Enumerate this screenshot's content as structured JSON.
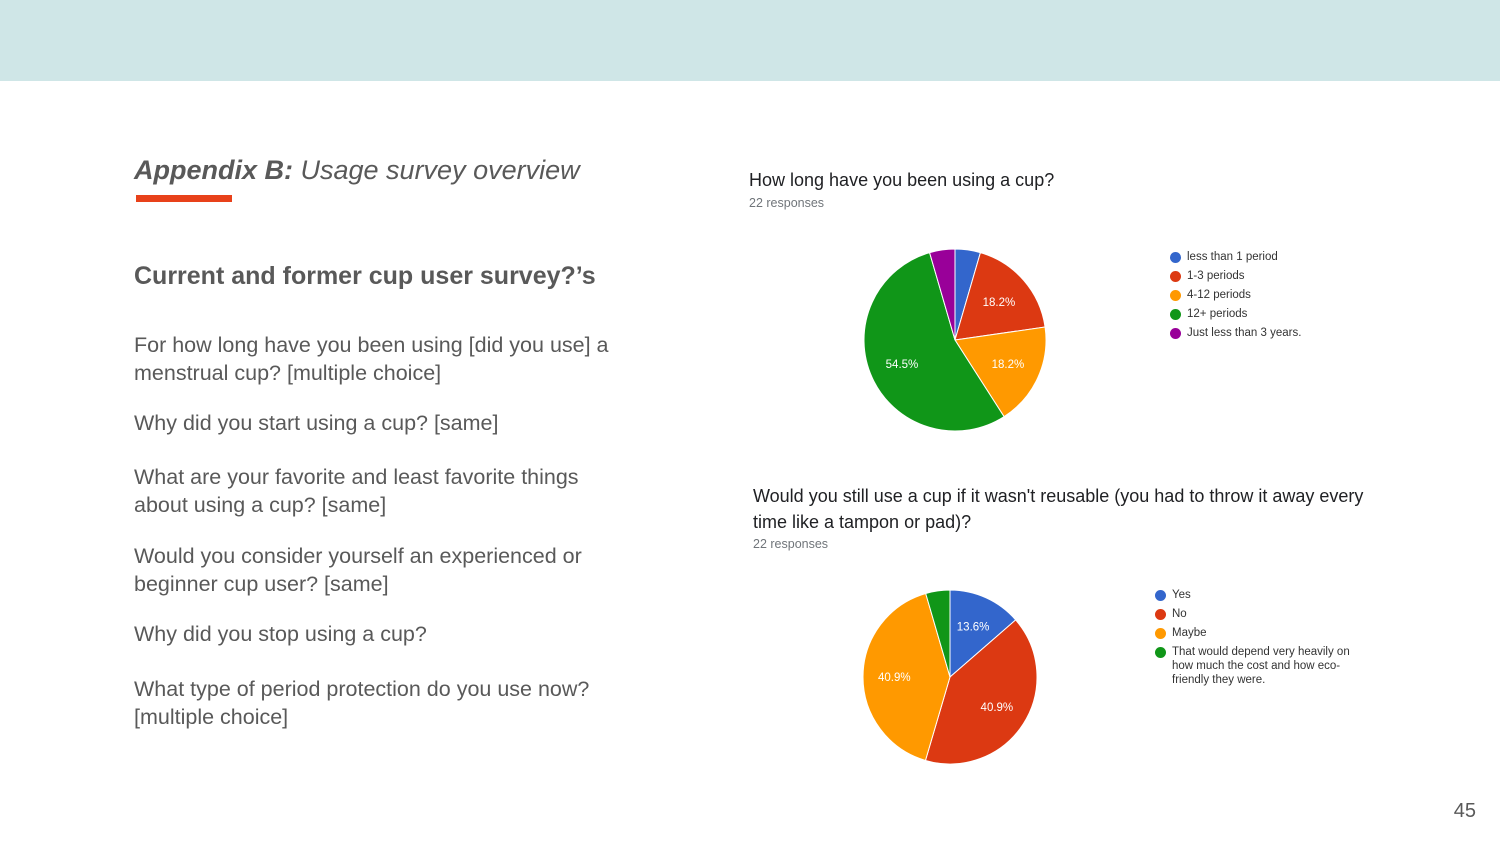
{
  "slide": {
    "title_bold": "Appendix B:",
    "title_rest": " Usage survey overview",
    "heading": "Current and former cup user survey?’s",
    "questions": [
      "For how long have you been using [did you use] a menstrual cup? [multiple choice]",
      "Why did you start using a cup? [same]",
      "What are your favorite and least favorite things about using a cup? [same]",
      "Would you consider yourself an experienced or beginner cup user? [same]",
      "Why did you stop using a cup?",
      "What type of period protection do you use now? [multiple choice]"
    ],
    "page_number": "45"
  },
  "chart_data": [
    {
      "type": "pie",
      "title": "How long have you been using a cup?",
      "subtitle": "22 responses",
      "categories": [
        "less than 1 period",
        "1-3 periods",
        "4-12 periods",
        "12+ periods",
        "Just less than 3 years."
      ],
      "values": [
        4.5,
        18.2,
        18.2,
        54.5,
        4.5
      ],
      "data_labels": [
        "",
        "18.2%",
        "18.2%",
        "54.5%",
        ""
      ],
      "colors": [
        "#3366cc",
        "#dc3912",
        "#ff9900",
        "#109618",
        "#990099"
      ],
      "legend": "right"
    },
    {
      "type": "pie",
      "title": "Would you still use a cup if it wasn't reusable (you had to throw it away every time like a tampon or pad)?",
      "subtitle": "22 responses",
      "categories": [
        "Yes",
        "No",
        "Maybe",
        "That would depend very heavily on how much the cost and how eco-friendly they were."
      ],
      "values": [
        13.6,
        40.9,
        40.9,
        4.5
      ],
      "data_labels": [
        "13.6%",
        "40.9%",
        "40.9%",
        ""
      ],
      "colors": [
        "#3366cc",
        "#dc3912",
        "#ff9900",
        "#109618"
      ],
      "legend": "right"
    }
  ]
}
